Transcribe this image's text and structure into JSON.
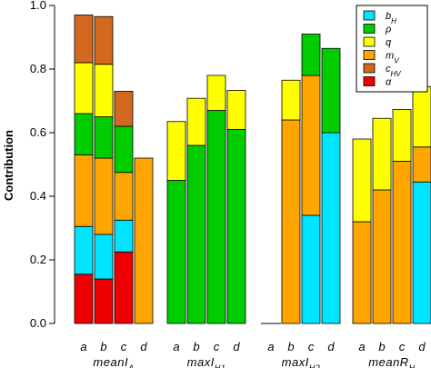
{
  "chart_data": {
    "type": "bar",
    "stacked": true,
    "ylabel": "Contribution",
    "ylim": [
      0,
      1.0
    ],
    "yticks": [
      "0.0",
      "0.2",
      "0.4",
      "0.6",
      "0.8",
      "1.0"
    ],
    "grid": false,
    "legend_position": "top-right",
    "colors": {
      "bH": "#00e5ff",
      "rho": "#00cc00",
      "q": "#ffff00",
      "mV": "#ffa500",
      "cHV": "#d2691e",
      "alpha": "#ee0000"
    },
    "legend": [
      {
        "key": "bH",
        "label": "b",
        "sub": "H"
      },
      {
        "key": "rho",
        "label": "ρ",
        "sub": ""
      },
      {
        "key": "q",
        "label": "q",
        "sub": ""
      },
      {
        "key": "mV",
        "label": "m",
        "sub": "V"
      },
      {
        "key": "cHV",
        "label": "c",
        "sub": "HV"
      },
      {
        "key": "alpha",
        "label": "α",
        "sub": ""
      }
    ],
    "groups": [
      {
        "label": "meanI",
        "sub": "A",
        "bars": [
          {
            "label": "a",
            "segments": [
              [
                "alpha",
                0.155
              ],
              [
                "bH",
                0.15
              ],
              [
                "mV",
                0.225
              ],
              [
                "rho",
                0.13
              ],
              [
                "q",
                0.16
              ],
              [
                "cHV",
                0.15
              ]
            ]
          },
          {
            "label": "b",
            "segments": [
              [
                "alpha",
                0.14
              ],
              [
                "bH",
                0.14
              ],
              [
                "mV",
                0.24
              ],
              [
                "rho",
                0.13
              ],
              [
                "q",
                0.165
              ],
              [
                "cHV",
                0.15
              ]
            ]
          },
          {
            "label": "c",
            "segments": [
              [
                "alpha",
                0.225
              ],
              [
                "bH",
                0.1
              ],
              [
                "mV",
                0.15
              ],
              [
                "rho",
                0.145
              ],
              [
                "q",
                0.0
              ],
              [
                "cHV",
                0.11
              ]
            ]
          },
          {
            "label": "d",
            "segments": [
              [
                "mV",
                0.52
              ]
            ]
          }
        ]
      },
      {
        "label": "maxI",
        "sub": "H1",
        "bars": [
          {
            "label": "a",
            "segments": [
              [
                "rho",
                0.45
              ],
              [
                "q",
                0.185
              ]
            ]
          },
          {
            "label": "b",
            "segments": [
              [
                "rho",
                0.56
              ],
              [
                "q",
                0.148
              ]
            ]
          },
          {
            "label": "c",
            "segments": [
              [
                "rho",
                0.67
              ],
              [
                "q",
                0.11
              ]
            ]
          },
          {
            "label": "d",
            "segments": [
              [
                "rho",
                0.61
              ],
              [
                "q",
                0.123
              ]
            ]
          }
        ]
      },
      {
        "label": "maxI",
        "sub": "H2",
        "bars": [
          {
            "label": "a",
            "segments": []
          },
          {
            "label": "b",
            "segments": [
              [
                "mV",
                0.64
              ],
              [
                "q",
                0.125
              ]
            ]
          },
          {
            "label": "c",
            "segments": [
              [
                "bH",
                0.34
              ],
              [
                "mV",
                0.44
              ],
              [
                "rho",
                0.13
              ]
            ]
          },
          {
            "label": "d",
            "segments": [
              [
                "bH",
                0.6
              ],
              [
                "rho",
                0.265
              ]
            ]
          }
        ]
      },
      {
        "label": "meanR",
        "sub": "H",
        "bars": [
          {
            "label": "a",
            "segments": [
              [
                "mV",
                0.32
              ],
              [
                "q",
                0.26
              ]
            ]
          },
          {
            "label": "b",
            "segments": [
              [
                "mV",
                0.42
              ],
              [
                "q",
                0.225
              ]
            ]
          },
          {
            "label": "c",
            "segments": [
              [
                "mV",
                0.51
              ],
              [
                "q",
                0.163
              ]
            ]
          },
          {
            "label": "d",
            "segments": [
              [
                "bH",
                0.445
              ],
              [
                "mV",
                0.11
              ],
              [
                "q",
                0.19
              ]
            ]
          }
        ]
      }
    ]
  }
}
